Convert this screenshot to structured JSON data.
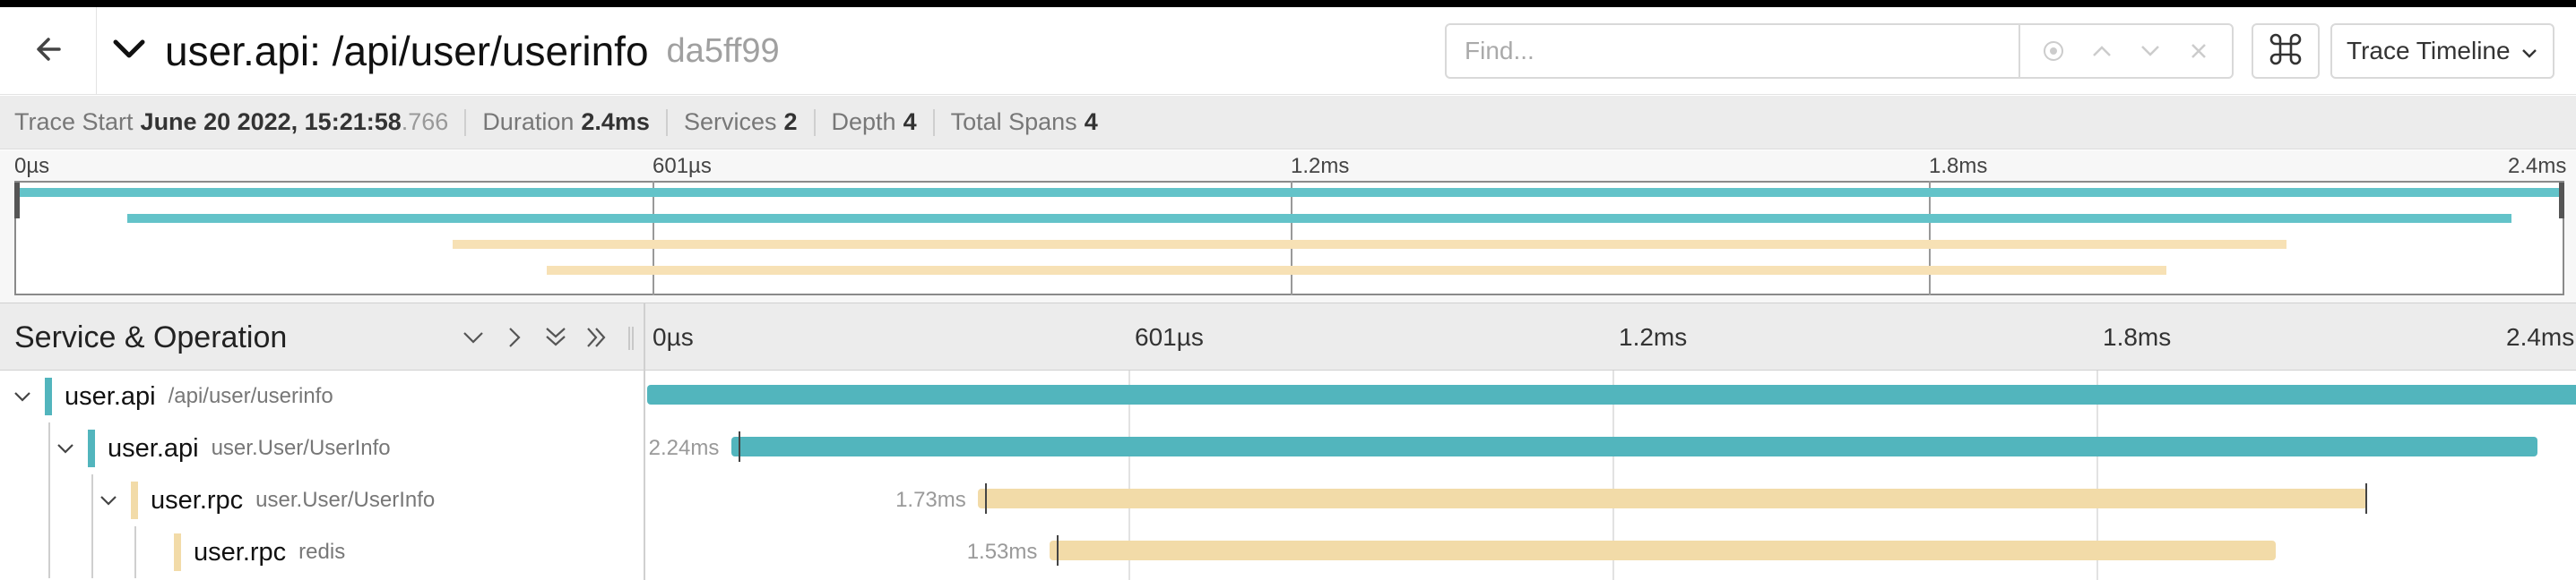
{
  "header": {
    "title": "user.api: /api/user/userinfo",
    "trace_id": "da5ff99",
    "find_placeholder": "Find...",
    "view_select": "Trace Timeline"
  },
  "summary": {
    "trace_start_label": "Trace Start",
    "trace_start_value": "June 20 2022, 15:21:58",
    "trace_start_ms": ".766",
    "duration_label": "Duration",
    "duration_value": "2.4ms",
    "services_label": "Services",
    "services_value": "2",
    "depth_label": "Depth",
    "depth_value": "4",
    "total_spans_label": "Total Spans",
    "total_spans_value": "4"
  },
  "minimap": {
    "ticks": [
      "0µs",
      "601µs",
      "1.2ms",
      "1.8ms",
      "2.4ms"
    ]
  },
  "timeline": {
    "header_title": "Service & Operation",
    "ticks": [
      "0µs",
      "601µs",
      "1.2ms",
      "1.8ms",
      "2.4ms"
    ]
  },
  "colors": {
    "user_api": "#52b5bd",
    "user_rpc": "#f2dba8",
    "minimap_api": "#63c3c9",
    "minimap_rpc": "#f7e1b5"
  },
  "spans": [
    {
      "service": "user.api",
      "operation": "/api/user/userinfo",
      "duration": "",
      "start_frac": 0.0,
      "end_frac": 1.0,
      "color": "user_api",
      "depth": 0,
      "has_children": true
    },
    {
      "service": "user.api",
      "operation": "user.User/UserInfo",
      "duration": "2.24ms",
      "start_frac": 0.0435,
      "end_frac": 0.98,
      "color": "user_api",
      "depth": 1,
      "has_children": true
    },
    {
      "service": "user.rpc",
      "operation": "user.User/UserInfo",
      "duration": "1.73ms",
      "start_frac": 0.1715,
      "end_frac": 0.8915,
      "color": "user_rpc",
      "depth": 2,
      "has_children": true
    },
    {
      "service": "user.rpc",
      "operation": "redis",
      "duration": "1.53ms",
      "start_frac": 0.2085,
      "end_frac": 0.8445,
      "color": "user_rpc",
      "depth": 3,
      "has_children": false
    }
  ]
}
